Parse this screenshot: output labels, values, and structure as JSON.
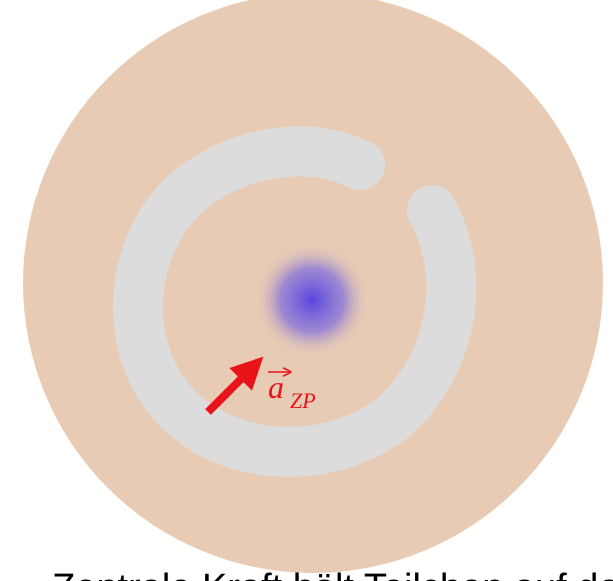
{
  "vector_label": {
    "symbol": "a",
    "subscript": "ZP"
  },
  "caption": "Zentrale Kraft hält Teilchen auf der Bahn"
}
